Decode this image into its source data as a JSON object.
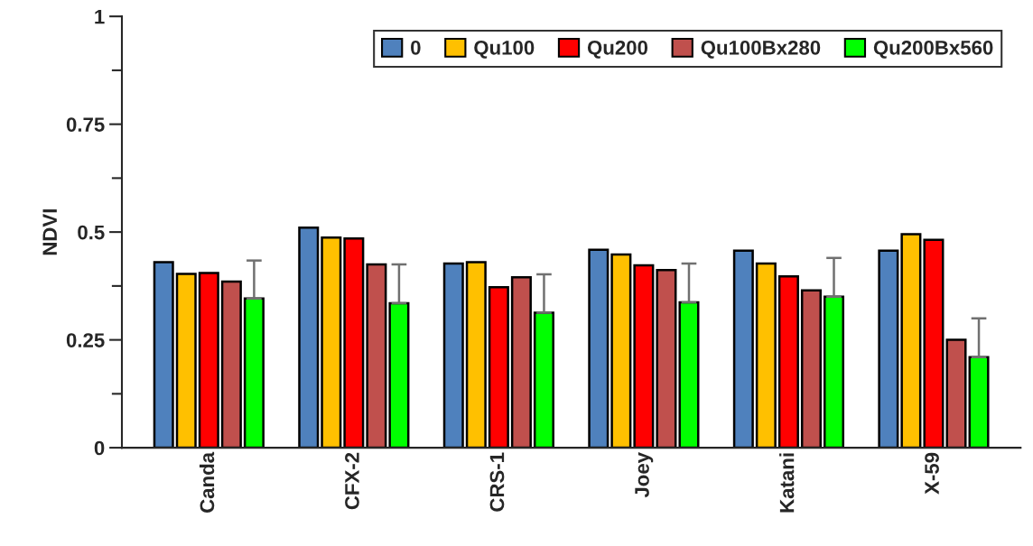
{
  "chart_data": {
    "type": "bar",
    "ylabel": "NDVI",
    "categories": [
      "Canda",
      "CFX-2",
      "CRS-1",
      "Joey",
      "Katani",
      "X-59"
    ],
    "series": [
      {
        "name": "0",
        "color": "#4f81bd",
        "values": [
          0.43,
          0.51,
          0.427,
          0.459,
          0.457,
          0.457
        ]
      },
      {
        "name": "Qu100",
        "color": "#ffc000",
        "values": [
          0.403,
          0.487,
          0.43,
          0.448,
          0.427,
          0.495
        ]
      },
      {
        "name": "Qu200",
        "color": "#ff0000",
        "values": [
          0.405,
          0.485,
          0.372,
          0.423,
          0.397,
          0.482
        ]
      },
      {
        "name": "Qu100Bx280",
        "color": "#c0504d",
        "values": [
          0.385,
          0.425,
          0.395,
          0.412,
          0.365,
          0.25
        ]
      },
      {
        "name": "Qu200Bx560",
        "color": "#00ff00",
        "values": [
          0.346,
          0.335,
          0.313,
          0.337,
          0.35,
          0.21
        ],
        "errors": [
          [
            0.346,
            0.434
          ],
          [
            0.335,
            0.425
          ],
          [
            0.313,
            0.402
          ],
          [
            0.337,
            0.427
          ],
          [
            0.35,
            0.44
          ],
          [
            0.21,
            0.3
          ]
        ]
      }
    ],
    "ylim": [
      0,
      1
    ],
    "yticks": [
      0,
      {
        "value": 0.125,
        "label": null
      },
      0.25,
      {
        "value": 0.375,
        "label": null
      },
      0.5,
      {
        "value": 0.625,
        "label": null
      },
      0.75,
      {
        "value": 0.875,
        "label": null
      },
      1
    ],
    "legend": "top right",
    "grid": false
  }
}
